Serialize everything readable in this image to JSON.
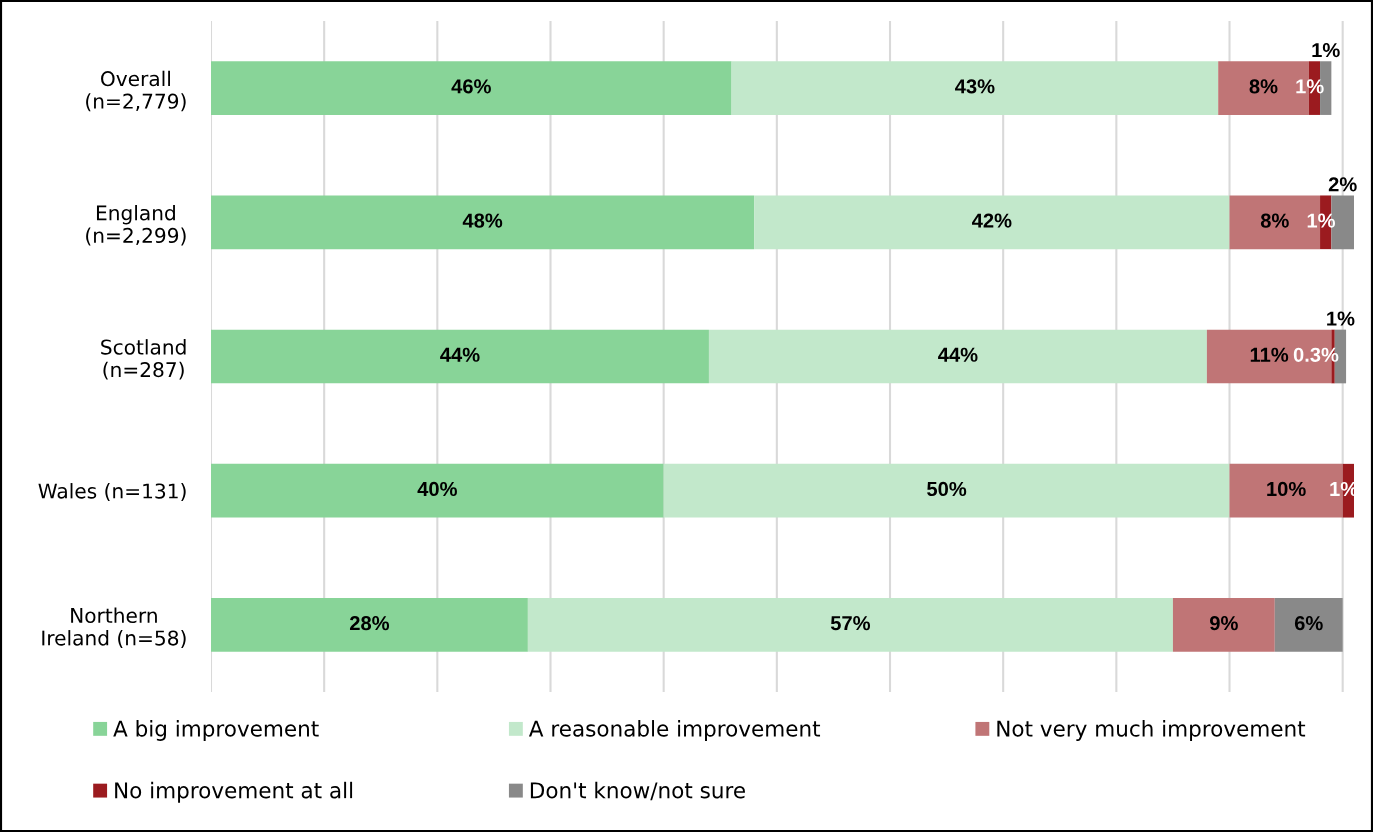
{
  "chart_data": {
    "type": "bar",
    "orientation": "horizontal",
    "stacked": true,
    "categories": [
      "Overall\n(n=2,779)",
      "England\n(n=2,299)",
      "Scotland\n(n=287)",
      "Wales (n=131)",
      "Northern\nIreland (n=58)"
    ],
    "series": [
      {
        "name": "A big improvement",
        "color": "#88d498",
        "values": [
          46,
          48,
          44,
          40,
          28
        ],
        "value_labels": [
          "46%",
          "48%",
          "44%",
          "40%",
          "28%"
        ]
      },
      {
        "name": "A reasonable improvement",
        "color": "#c2e8cb",
        "values": [
          43,
          42,
          44,
          50,
          57
        ],
        "value_labels": [
          "43%",
          "42%",
          "44%",
          "50%",
          "57%"
        ]
      },
      {
        "name": "Not very much improvement",
        "color": "#c07576",
        "values": [
          8,
          8,
          11,
          10,
          9
        ],
        "value_labels": [
          "8%",
          "8%",
          "11%",
          "10%",
          "9%"
        ]
      },
      {
        "name": "No improvement at all",
        "color": "#9b1b1f",
        "values": [
          1,
          1,
          0.3,
          1,
          null
        ],
        "value_labels": [
          "1%",
          "1%",
          "0.3%",
          "1%",
          null
        ]
      },
      {
        "name": "Don't know/not sure",
        "color": "#898989",
        "values": [
          1,
          2,
          1,
          null,
          6
        ],
        "value_labels": [
          "1%",
          "2%",
          "1%",
          null,
          "6%"
        ]
      }
    ],
    "xlim": [
      0,
      101
    ],
    "xticks": [
      {
        "value": 0,
        "label": null
      },
      {
        "value": 10,
        "label": null
      },
      {
        "value": 20,
        "label": null
      },
      {
        "value": 30,
        "label": null
      },
      {
        "value": 40,
        "label": null
      },
      {
        "value": 50,
        "label": null
      },
      {
        "value": 60,
        "label": null
      },
      {
        "value": 70,
        "label": null
      },
      {
        "value": 80,
        "label": null
      },
      {
        "value": 90,
        "label": null
      },
      {
        "value": 100,
        "label": null
      }
    ],
    "grid": "x",
    "tick_labels": "y",
    "legend": "bottom"
  }
}
